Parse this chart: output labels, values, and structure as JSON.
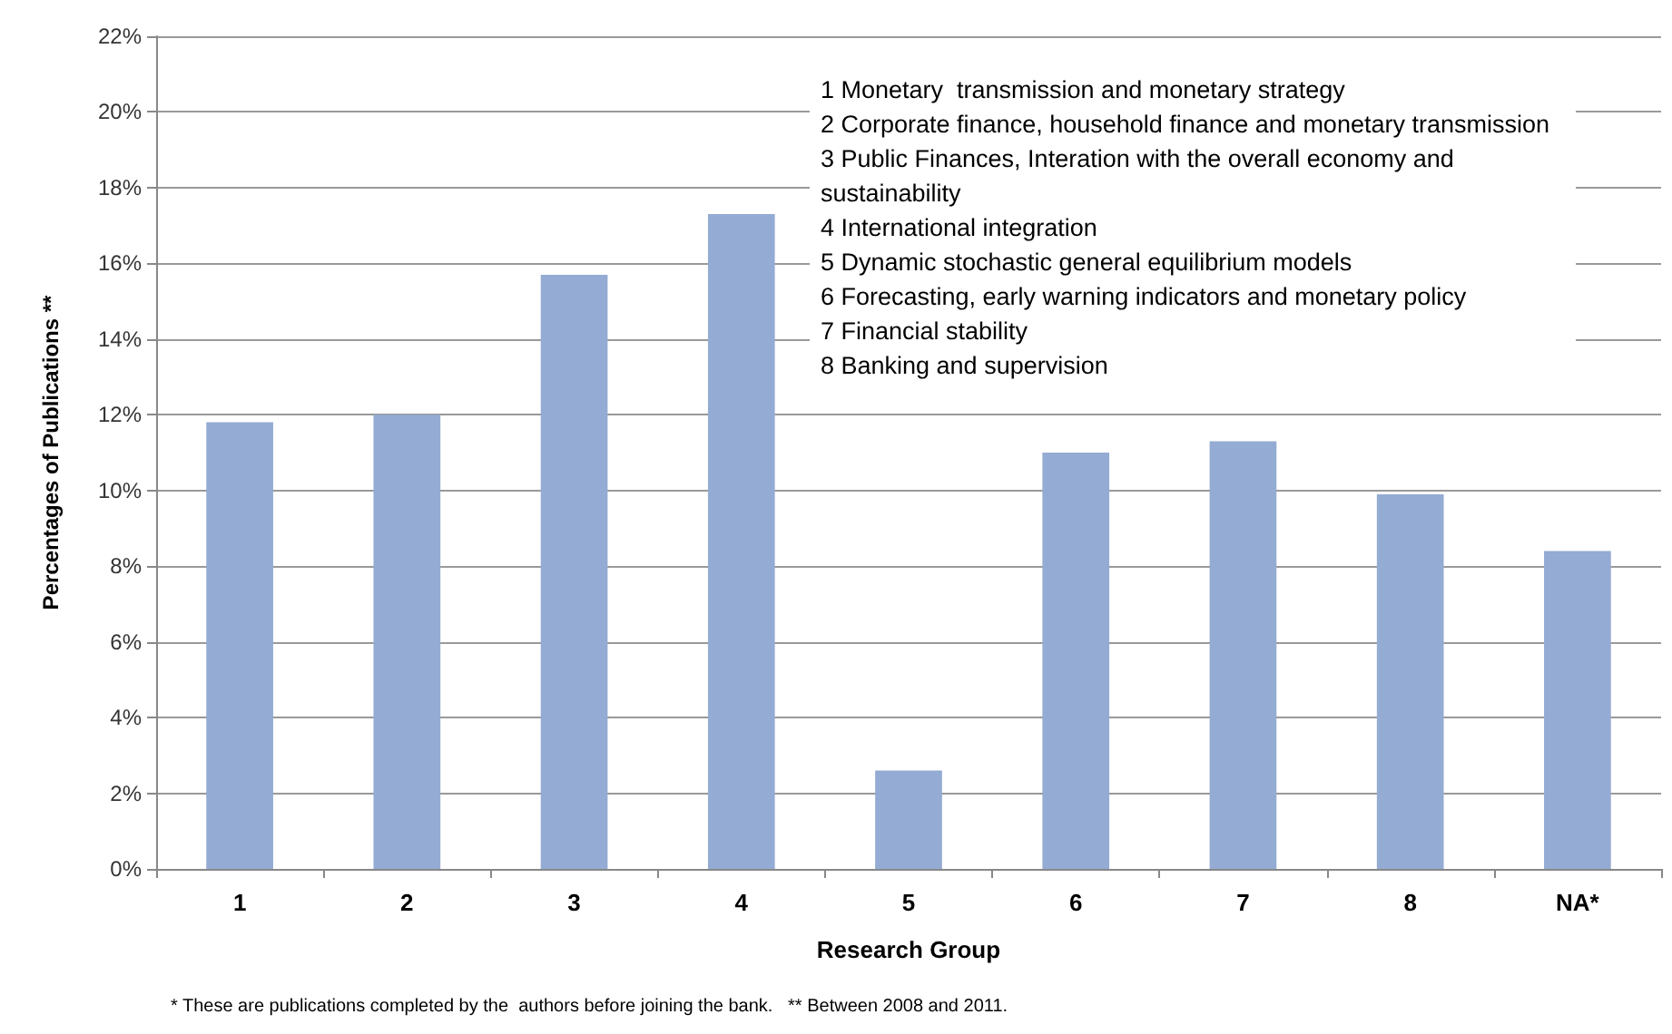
{
  "chart_data": {
    "type": "bar",
    "xlabel": "Research Group",
    "ylabel": "Percentages of Publications **",
    "categories": [
      "1",
      "2",
      "3",
      "4",
      "5",
      "6",
      "7",
      "8",
      "NA*"
    ],
    "values": [
      11.8,
      12.0,
      15.7,
      17.3,
      2.6,
      11.0,
      11.3,
      9.9,
      8.4
    ],
    "color": "#94abd3",
    "ylim": [
      0,
      22
    ],
    "yticks": [
      {
        "value": 0,
        "label": "0%"
      },
      {
        "value": 2,
        "label": "2%"
      },
      {
        "value": 4,
        "label": "4%"
      },
      {
        "value": 6,
        "label": "6%"
      },
      {
        "value": 8,
        "label": "8%"
      },
      {
        "value": 10,
        "label": "10%"
      },
      {
        "value": 12,
        "label": "12%"
      },
      {
        "value": 14,
        "label": "14%"
      },
      {
        "value": 16,
        "label": "16%"
      },
      {
        "value": 18,
        "label": "18%"
      },
      {
        "value": 20,
        "label": "20%"
      },
      {
        "value": 22,
        "label": "22%"
      }
    ],
    "grid": "y",
    "annotations": [
      "1 Monetary  transmission and monetary strategy",
      "2 Corporate finance, household finance and monetary transmission",
      "3 Public Finances, Interation with the overall economy and sustainability",
      "4 International integration",
      "5 Dynamic stochastic general equilibrium models",
      "6 Forecasting, early warning indicators and monetary policy",
      "7 Financial stability",
      "8 Banking and supervision",
      "* These are publications completed by the  authors before joining the bank.   ** Between 2008 and 2011."
    ]
  }
}
